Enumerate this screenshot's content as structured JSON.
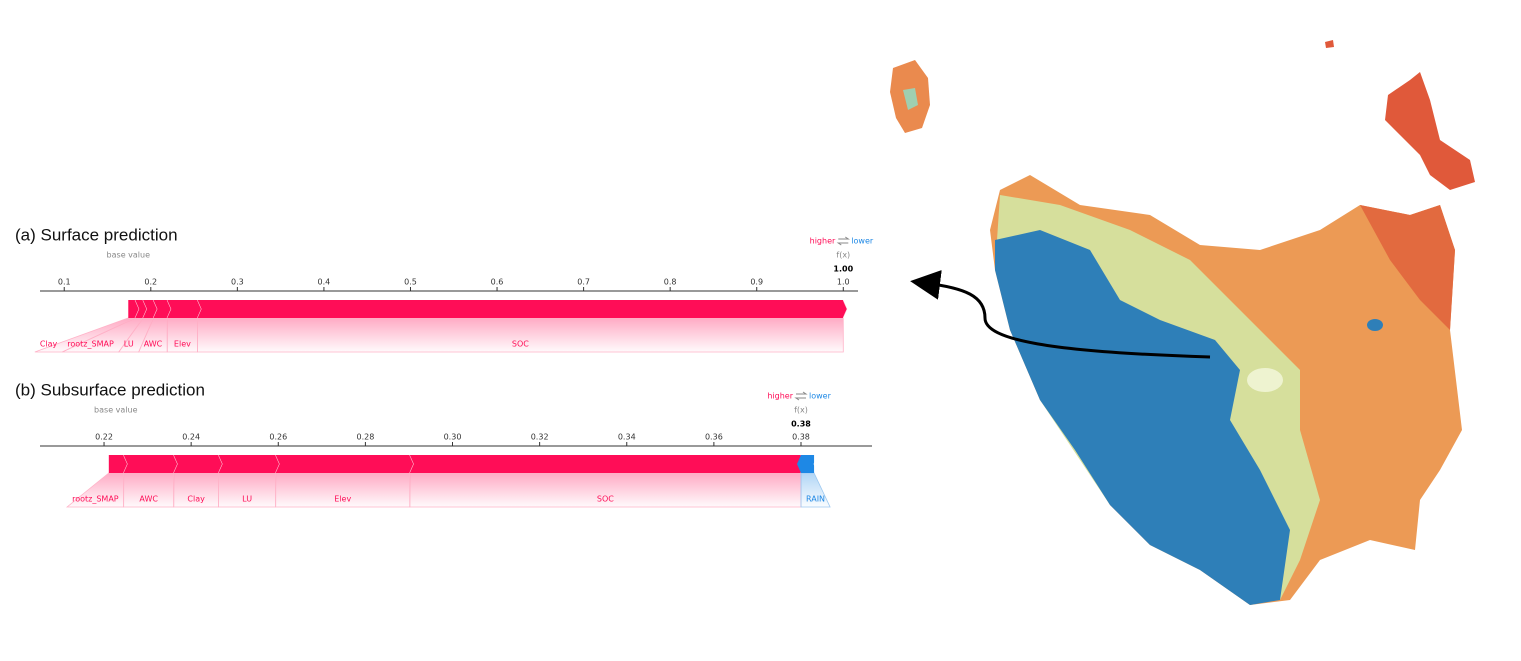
{
  "chart_data": [
    {
      "type": "force",
      "title": "(a) Surface prediction",
      "base_label": "base value",
      "higher": "higher",
      "lower": "lower",
      "fx_name": "f(x)",
      "fx": {
        "value": 1,
        "label": "1.00"
      },
      "base_value": 0.174,
      "categories": [
        "Clay",
        "rootz_SMAP",
        "LU",
        "AWC",
        "Elev",
        "SOC"
      ],
      "values": [
        0.008,
        0.009,
        0.012,
        0.016,
        0.035,
        0.746
      ],
      "color_positive": "#ff0d57",
      "color_negative": "#1e88e5",
      "xlim": [
        0.072,
        1.017
      ],
      "xticks": [
        0.1,
        0.2,
        0.3,
        0.4,
        0.5,
        0.6,
        0.7,
        0.8,
        0.9,
        {
          "value": 1,
          "label": "1.0"
        }
      ]
    },
    {
      "type": "force",
      "title": "(b) Subsurface prediction",
      "base_label": "base value",
      "higher": "higher",
      "lower": "lower",
      "fx_name": "f(x)",
      "fx": {
        "value": 0.38,
        "label": "0.38"
      },
      "base_value": 0.2227,
      "categories": [
        "rootz_SMAP",
        "AWC",
        "Clay",
        "LU",
        "Elev",
        "SOC",
        "RAIN"
      ],
      "values": [
        0.0034,
        0.0115,
        0.0103,
        0.0131,
        0.0308,
        0.0898,
        -0.003
      ],
      "color_positive": "#ff0d57",
      "color_negative": "#1e88e5",
      "xlim": [
        0.2053,
        0.3963
      ],
      "xticks": [
        0.22,
        0.24,
        0.26,
        0.28,
        {
          "value": 0.3,
          "label": "0.30"
        },
        0.32,
        0.34,
        0.36,
        0.38
      ]
    }
  ]
}
